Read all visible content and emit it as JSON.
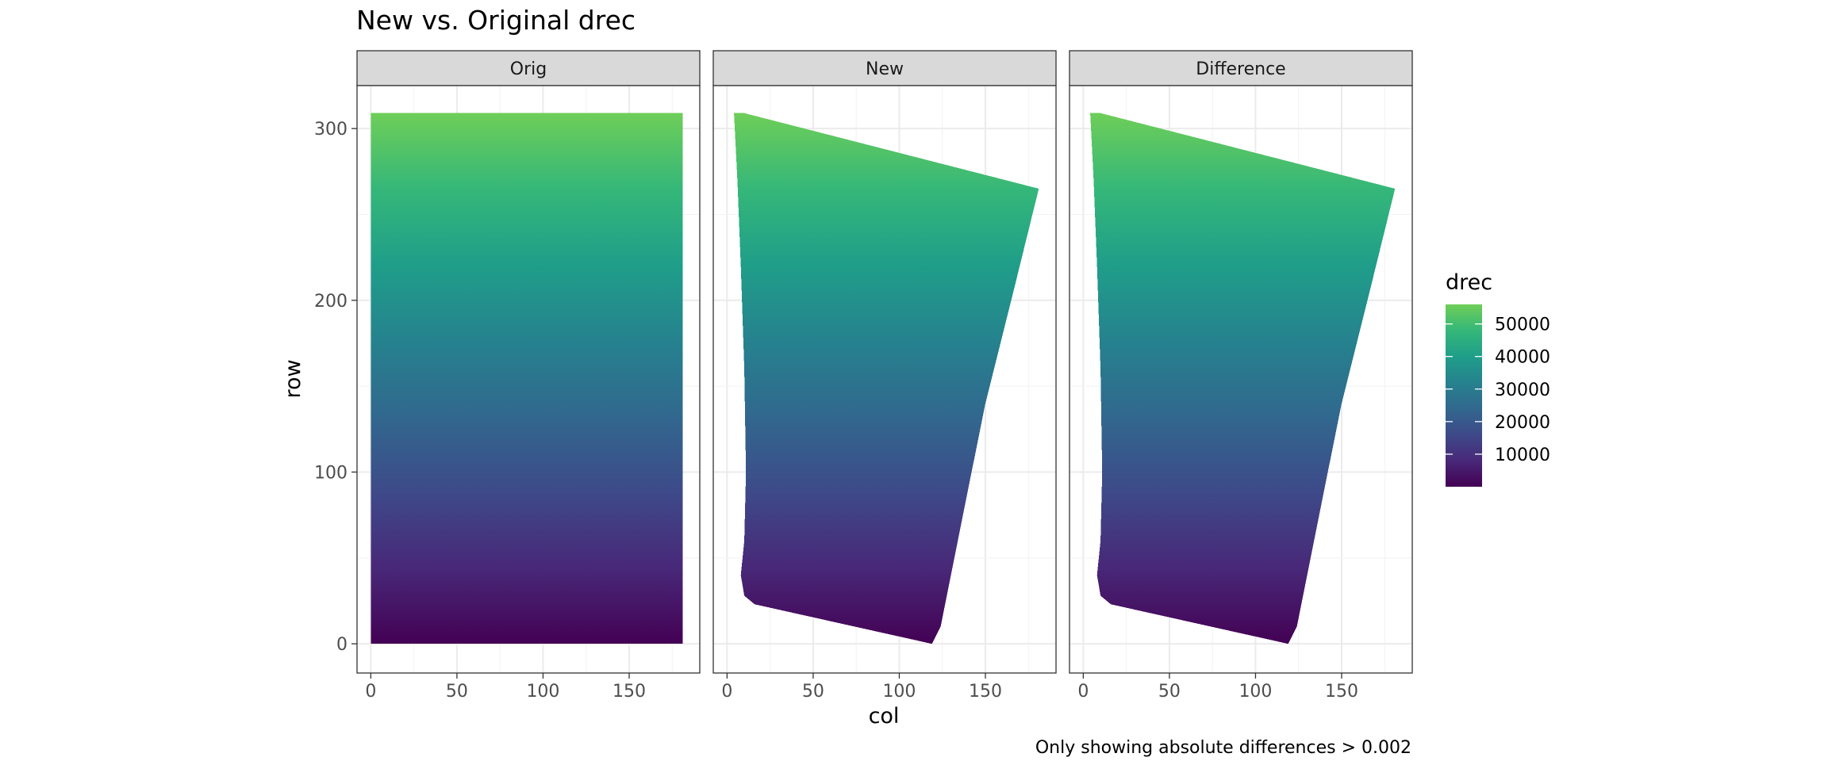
{
  "chart_data": {
    "type": "heatmap",
    "title": "New vs. Original drec",
    "xlabel": "col",
    "ylabel": "row",
    "caption": "Only showing absolute differences > 0.002",
    "xlim": [
      -8,
      191
    ],
    "ylim": [
      325,
      -17
    ],
    "y_reversed": true,
    "x_ticks": [
      0,
      50,
      100,
      150
    ],
    "y_ticks": [
      0,
      100,
      200,
      300
    ],
    "grid": true,
    "raster": {
      "cols": [
        0,
        181
      ],
      "rows": [
        0,
        309
      ],
      "na_fill": "#7f7f7f"
    },
    "panels": [
      {
        "label": "Orig",
        "valid_region": [
          [
            0,
            0
          ],
          [
            181,
            0
          ],
          [
            181,
            309
          ],
          [
            0,
            309
          ]
        ]
      },
      {
        "label": "New",
        "valid_region": [
          [
            119,
            0
          ],
          [
            16,
            23
          ],
          [
            10,
            28
          ],
          [
            8,
            40
          ],
          [
            10,
            60
          ],
          [
            11,
            100
          ],
          [
            10,
            160
          ],
          [
            8,
            220
          ],
          [
            6,
            270
          ],
          [
            4,
            309
          ],
          [
            10,
            309
          ],
          [
            181,
            265
          ],
          [
            165,
            200
          ],
          [
            150,
            140
          ],
          [
            138,
            80
          ],
          [
            124,
            10
          ]
        ]
      },
      {
        "label": "Difference",
        "valid_region": [
          [
            119,
            0
          ],
          [
            16,
            23
          ],
          [
            10,
            28
          ],
          [
            8,
            40
          ],
          [
            10,
            60
          ],
          [
            11,
            100
          ],
          [
            10,
            160
          ],
          [
            8,
            220
          ],
          [
            6,
            270
          ],
          [
            4,
            309
          ],
          [
            10,
            309
          ],
          [
            181,
            265
          ],
          [
            165,
            200
          ],
          [
            150,
            140
          ],
          [
            138,
            80
          ],
          [
            124,
            10
          ]
        ]
      }
    ],
    "fill": {
      "variable": "drec",
      "gradient": "row",
      "low": 0,
      "high": 56000,
      "colors": [
        "#440154",
        "#482878",
        "#3e4a89",
        "#31688e",
        "#26828e",
        "#1f9e89",
        "#35b779",
        "#6ece58"
      ]
    },
    "legend": {
      "title": "drec",
      "position": "right",
      "breaks": [
        10000,
        20000,
        30000,
        40000,
        50000
      ]
    }
  }
}
